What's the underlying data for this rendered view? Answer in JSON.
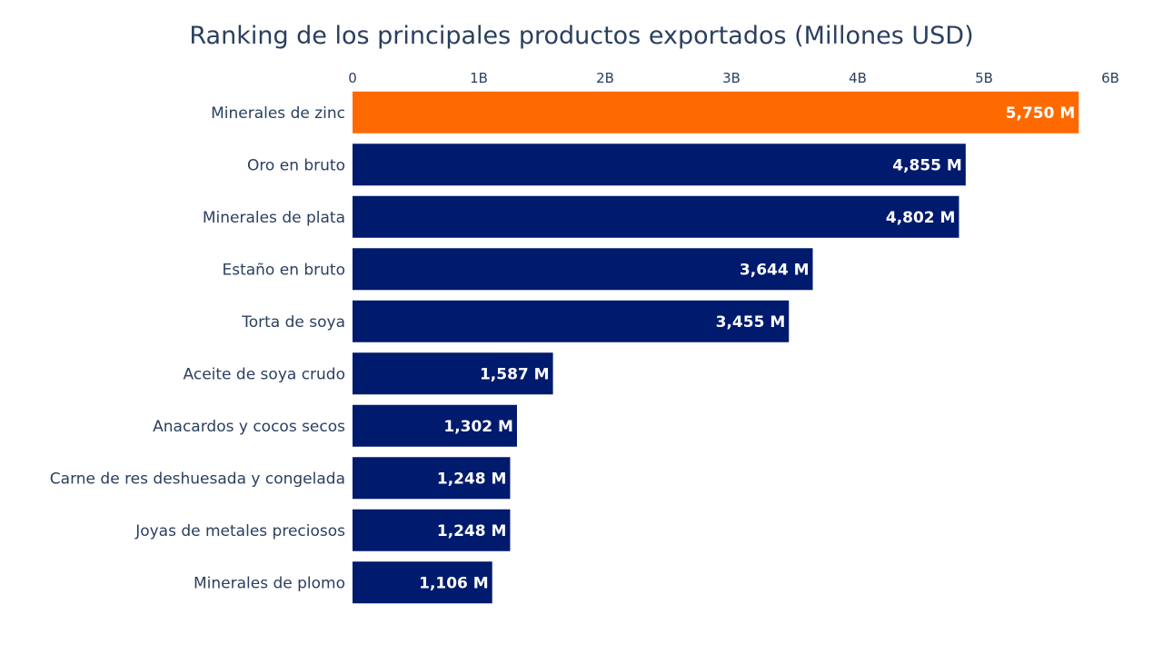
{
  "chart_data": {
    "type": "bar",
    "orientation": "horizontal",
    "title": "Ranking de los principales productos exportados (Millones USD)",
    "xlabel": "",
    "ylabel": "",
    "xlim": [
      0,
      6000000000
    ],
    "x_ticks": [
      {
        "value": 0,
        "label": "0"
      },
      {
        "value": 1000000000,
        "label": "1B"
      },
      {
        "value": 2000000000,
        "label": "2B"
      },
      {
        "value": 3000000000,
        "label": "3B"
      },
      {
        "value": 4000000000,
        "label": "4B"
      },
      {
        "value": 5000000000,
        "label": "5B"
      },
      {
        "value": 6000000000,
        "label": "6B"
      }
    ],
    "x_axis_position": "top",
    "grid": false,
    "legend": "none",
    "highlight_color": "#ff6a00",
    "bar_color": "#001a6e",
    "categories": [
      "Minerales de zinc",
      "Oro en bruto",
      "Minerales de plata",
      "Estaño en bruto",
      "Torta de soya",
      "Aceite de soya crudo",
      "Anacardos y cocos secos",
      "Carne de res deshuesada y congelada",
      "Joyas de metales preciosos",
      "Minerales de plomo"
    ],
    "values": [
      5750000000,
      4855000000,
      4802000000,
      3644000000,
      3455000000,
      1587000000,
      1302000000,
      1248000000,
      1248000000,
      1106000000
    ],
    "value_labels": [
      "5,750 M",
      "4,855 M",
      "4,802 M",
      "3,644 M",
      "3,455 M",
      "1,587 M",
      "1,302 M",
      "1,248 M",
      "1,248 M",
      "1,106 M"
    ],
    "highlighted": [
      true,
      false,
      false,
      false,
      false,
      false,
      false,
      false,
      false,
      false
    ]
  }
}
